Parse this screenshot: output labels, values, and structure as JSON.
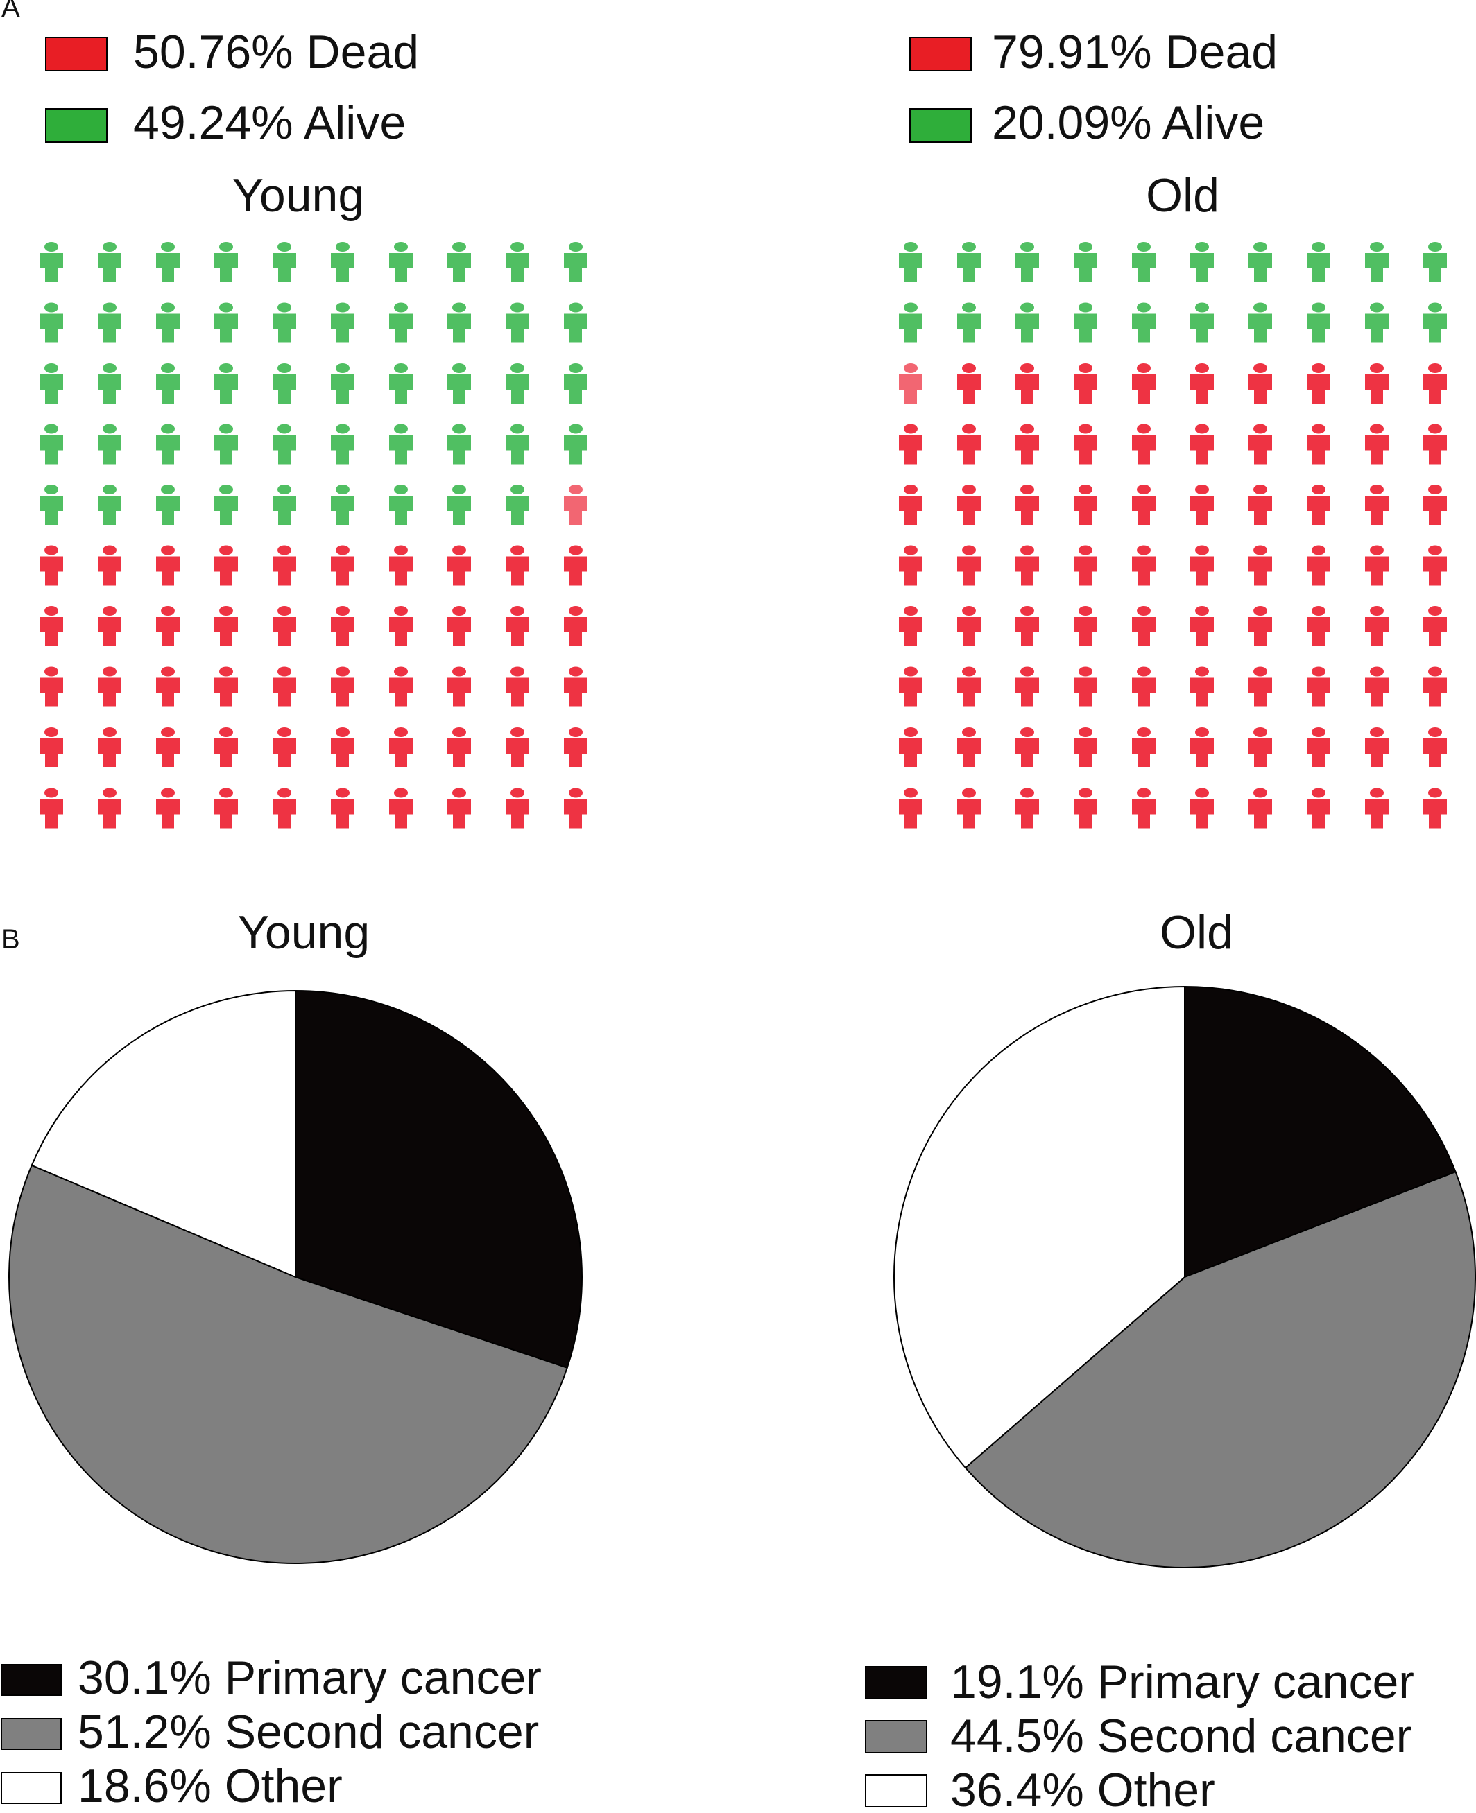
{
  "panel_labels": [
    "A",
    "B"
  ],
  "colors": {
    "dead_legend": "#e81e25",
    "alive_legend": "#2fae3a",
    "dead_icon": "#ee3343",
    "alive_icon": "#50bf62",
    "primary": "#0a0606",
    "second": "#808080",
    "other": "#ffffff"
  },
  "chart_data": [
    {
      "type": "pictogram",
      "panel": "A",
      "title": "Young",
      "grid": {
        "rows": 10,
        "cols": 10
      },
      "legend": [
        {
          "key": "dead",
          "text": "50.76%  Dead"
        },
        {
          "key": "alive",
          "text": "49.24%  Alive"
        }
      ],
      "values": {
        "dead": 50.76,
        "alive": 49.24
      }
    },
    {
      "type": "pictogram",
      "panel": "A",
      "title": "Old",
      "grid": {
        "rows": 10,
        "cols": 10
      },
      "legend": [
        {
          "key": "dead",
          "text": "79.91%  Dead"
        },
        {
          "key": "alive",
          "text": "20.09%  Alive"
        }
      ],
      "values": {
        "dead": 79.91,
        "alive": 20.09
      }
    },
    {
      "type": "pie",
      "panel": "B",
      "title": "Young",
      "slices": [
        {
          "key": "primary",
          "label": "Primary cancer",
          "value": 30.1,
          "legend": "30.1%  Primary cancer"
        },
        {
          "key": "second",
          "label": "Second cancer",
          "value": 51.2,
          "legend": "51.2%  Second cancer"
        },
        {
          "key": "other",
          "label": "Other",
          "value": 18.6,
          "legend": "18.6%  Other"
        }
      ]
    },
    {
      "type": "pie",
      "panel": "B",
      "title": "Old",
      "slices": [
        {
          "key": "primary",
          "label": "Primary cancer",
          "value": 19.1,
          "legend": "19.1%  Primary cancer"
        },
        {
          "key": "second",
          "label": "Second cancer",
          "value": 44.5,
          "legend": "44.5%  Second cancer"
        },
        {
          "key": "other",
          "label": "Other",
          "value": 36.4,
          "legend": "36.4%  Other"
        }
      ]
    }
  ]
}
